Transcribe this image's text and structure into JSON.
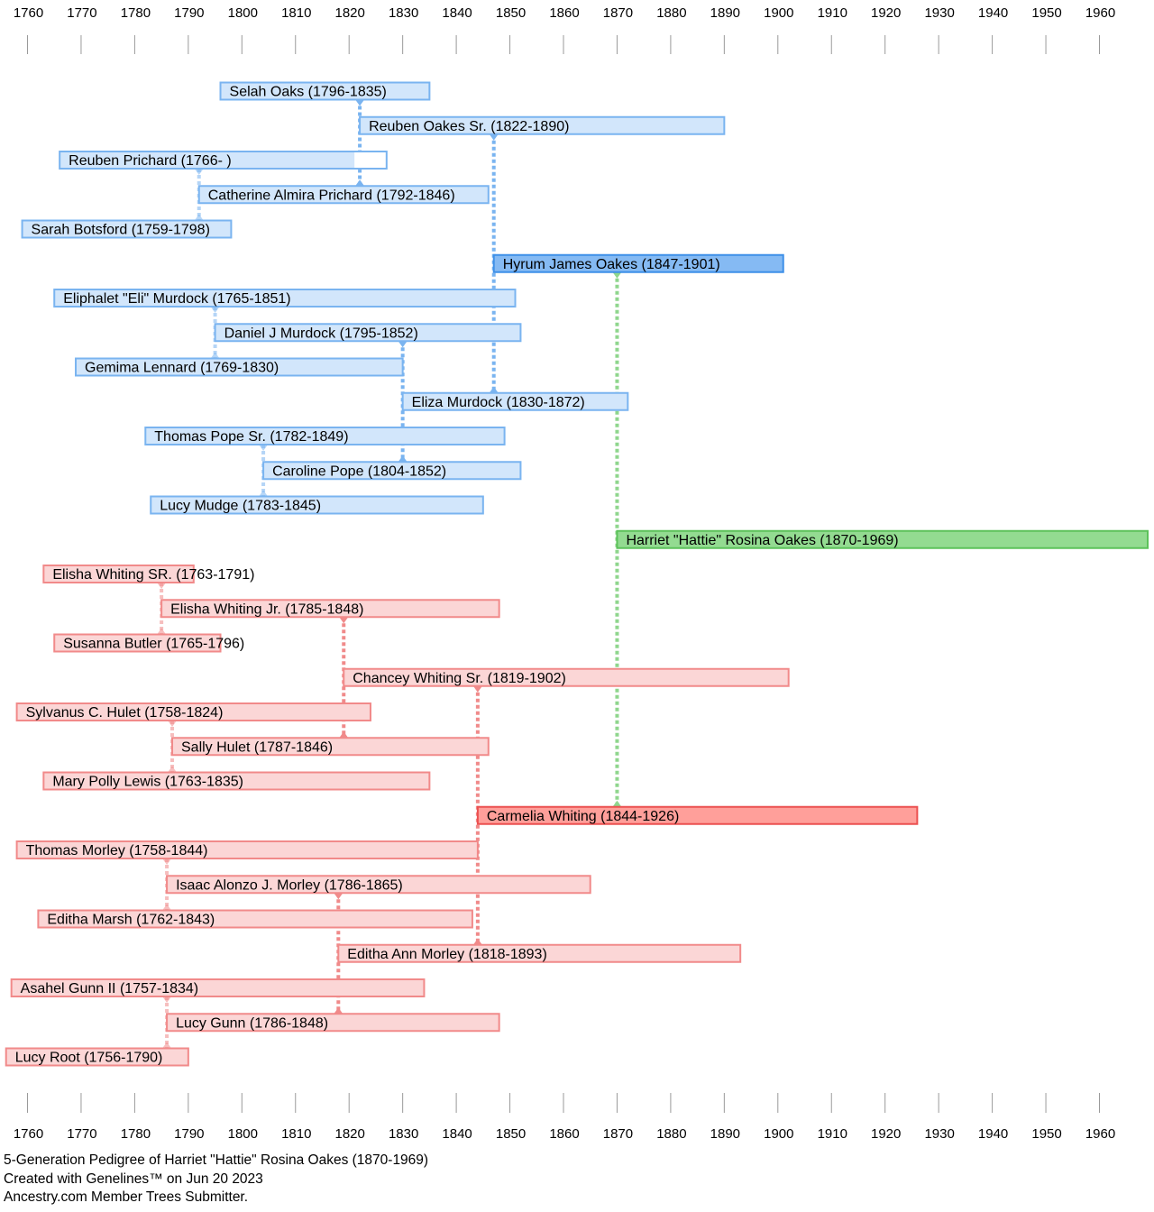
{
  "axis": {
    "start_year": 1760,
    "end_year": 1960,
    "step": 10
  },
  "colors": {
    "paternal_fill": "#d2e6fb",
    "paternal_stroke": "#7ab4f0",
    "paternal_focus_fill": "#85baf3",
    "paternal_focus_stroke": "#3d8fe8",
    "maternal_fill": "#fbd6d6",
    "maternal_stroke": "#f18a8a",
    "maternal_focus_fill": "#ff9f9a",
    "maternal_focus_stroke": "#ec5050",
    "subject_fill": "#93db91",
    "subject_stroke": "#5cc25a",
    "paternal_connector": "#7ab4f0",
    "maternal_connector": "#f08a8a",
    "subject_connector": "#8fd68d"
  },
  "chart_data": {
    "type": "timeline",
    "subject": "Harriet \"Hattie\" Rosina Oakes",
    "people": [
      {
        "id": "selah",
        "label": "Selah Oaks (1796-1835)",
        "start": 1796,
        "end": 1835,
        "side": "paternal",
        "level": 1
      },
      {
        "id": "reuben_sr",
        "label": "Reuben Oakes Sr. (1822-1890)",
        "start": 1822,
        "end": 1890,
        "side": "paternal",
        "level": 2
      },
      {
        "id": "reuben_prichard",
        "label": "Reuben Prichard (1766- )",
        "start": 1766,
        "end": 1827,
        "unknown_end": true,
        "open_from": 1821,
        "side": "paternal",
        "level": 1
      },
      {
        "id": "catherine",
        "label": "Catherine Almira Prichard (1792-1846)",
        "start": 1792,
        "end": 1846,
        "side": "paternal",
        "level": 1
      },
      {
        "id": "sarah",
        "label": "Sarah Botsford (1759-1798)",
        "start": 1759,
        "end": 1798,
        "side": "paternal",
        "level": 1
      },
      {
        "id": "hyrum",
        "label": "Hyrum James Oakes (1847-1901)",
        "start": 1847,
        "end": 1901,
        "side": "paternal",
        "level": 3
      },
      {
        "id": "eliphalet",
        "label": "Eliphalet \"Eli\" Murdock (1765-1851)",
        "start": 1765,
        "end": 1851,
        "side": "paternal",
        "level": 1
      },
      {
        "id": "daniel",
        "label": "Daniel J Murdock (1795-1852)",
        "start": 1795,
        "end": 1852,
        "side": "paternal",
        "level": 1
      },
      {
        "id": "gemima",
        "label": "Gemima Lennard (1769-1830)",
        "start": 1769,
        "end": 1830,
        "side": "paternal",
        "level": 1
      },
      {
        "id": "eliza",
        "label": "Eliza Murdock (1830-1872)",
        "start": 1830,
        "end": 1872,
        "side": "paternal",
        "level": 2
      },
      {
        "id": "thomas_pope",
        "label": "Thomas Pope Sr. (1782-1849)",
        "start": 1782,
        "end": 1849,
        "side": "paternal",
        "level": 1
      },
      {
        "id": "caroline",
        "label": "Caroline Pope (1804-1852)",
        "start": 1804,
        "end": 1852,
        "side": "paternal",
        "level": 1
      },
      {
        "id": "lucy_mudge",
        "label": "Lucy Mudge (1783-1845)",
        "start": 1783,
        "end": 1845,
        "side": "paternal",
        "level": 1
      },
      {
        "id": "harriet",
        "label": "Harriet \"Hattie\" Rosina Oakes (1870-1969)",
        "start": 1870,
        "end": 1969,
        "side": "subject",
        "level": 4
      },
      {
        "id": "elisha_sr",
        "label": "Elisha Whiting SR. (1763-1791)",
        "start": 1763,
        "end": 1791,
        "side": "maternal",
        "level": 1
      },
      {
        "id": "elisha_jr",
        "label": "Elisha Whiting Jr. (1785-1848)",
        "start": 1785,
        "end": 1848,
        "side": "maternal",
        "level": 1
      },
      {
        "id": "susanna",
        "label": "Susanna Butler (1765-1796)",
        "start": 1765,
        "end": 1796,
        "side": "maternal",
        "level": 1
      },
      {
        "id": "chancey",
        "label": "Chancey Whiting Sr. (1819-1902)",
        "start": 1819,
        "end": 1902,
        "side": "maternal",
        "level": 2
      },
      {
        "id": "sylvanus",
        "label": "Sylvanus C. Hulet (1758-1824)",
        "start": 1758,
        "end": 1824,
        "side": "maternal",
        "level": 1
      },
      {
        "id": "sally",
        "label": "Sally Hulet (1787-1846)",
        "start": 1787,
        "end": 1846,
        "side": "maternal",
        "level": 1
      },
      {
        "id": "mary",
        "label": "Mary Polly Lewis (1763-1835)",
        "start": 1763,
        "end": 1835,
        "side": "maternal",
        "level": 1
      },
      {
        "id": "carmelia",
        "label": "Carmelia Whiting (1844-1926)",
        "start": 1844,
        "end": 1926,
        "side": "maternal",
        "level": 3
      },
      {
        "id": "thomas_morley",
        "label": "Thomas Morley (1758-1844)",
        "start": 1758,
        "end": 1844,
        "side": "maternal",
        "level": 1
      },
      {
        "id": "isaac",
        "label": "Isaac Alonzo J. Morley (1786-1865)",
        "start": 1786,
        "end": 1865,
        "side": "maternal",
        "level": 1
      },
      {
        "id": "editha_marsh",
        "label": "Editha Marsh (1762-1843)",
        "start": 1762,
        "end": 1843,
        "side": "maternal",
        "level": 1
      },
      {
        "id": "editha_ann",
        "label": "Editha Ann Morley (1818-1893)",
        "start": 1818,
        "end": 1893,
        "side": "maternal",
        "level": 2
      },
      {
        "id": "asahel",
        "label": "Asahel Gunn  II (1757-1834)",
        "start": 1757,
        "end": 1834,
        "side": "maternal",
        "level": 1
      },
      {
        "id": "lucy_gunn",
        "label": "Lucy Gunn (1786-1848)",
        "start": 1786,
        "end": 1848,
        "side": "maternal",
        "level": 1
      },
      {
        "id": "lucy_root",
        "label": "Lucy Root (1756-1790)",
        "start": 1756,
        "end": 1790,
        "side": "maternal",
        "level": 1
      }
    ],
    "relations": [
      {
        "child": "reuben_sr",
        "father": "selah",
        "mother": "catherine"
      },
      {
        "child": "catherine",
        "father": "reuben_prichard",
        "mother": "sarah"
      },
      {
        "child": "hyrum",
        "father": "reuben_sr",
        "mother": "eliza"
      },
      {
        "child": "daniel",
        "father": "eliphalet",
        "mother": "gemima"
      },
      {
        "child": "eliza",
        "father": "daniel",
        "mother": "caroline"
      },
      {
        "child": "caroline",
        "father": "thomas_pope",
        "mother": "lucy_mudge"
      },
      {
        "child": "harriet",
        "father": "hyrum",
        "mother": "carmelia"
      },
      {
        "child": "elisha_jr",
        "father": "elisha_sr",
        "mother": "susanna"
      },
      {
        "child": "chancey",
        "father": "elisha_jr",
        "mother": "sally"
      },
      {
        "child": "sally",
        "father": "sylvanus",
        "mother": "mary"
      },
      {
        "child": "carmelia",
        "father": "chancey",
        "mother": "editha_ann"
      },
      {
        "child": "isaac",
        "father": "thomas_morley",
        "mother": "editha_marsh"
      },
      {
        "child": "editha_ann",
        "father": "isaac",
        "mother": "lucy_gunn"
      },
      {
        "child": "lucy_gunn",
        "father": "asahel",
        "mother": "lucy_root"
      }
    ]
  },
  "footer": {
    "line1": "5-Generation Pedigree of Harriet \"Hattie\" Rosina Oakes (1870-1969)",
    "line2": "Created with Genelines™ on Jun 20 2023",
    "line3": "Ancestry.com Member Trees Submitter."
  }
}
